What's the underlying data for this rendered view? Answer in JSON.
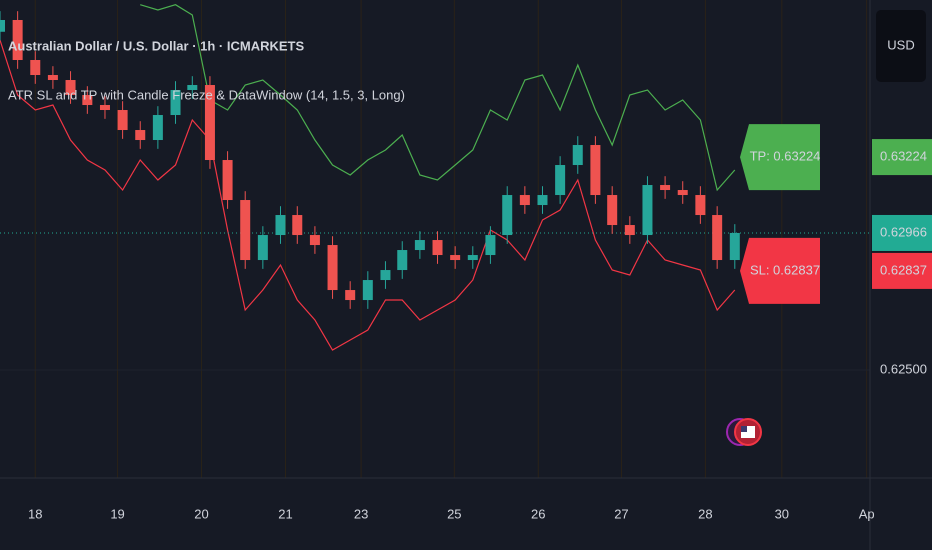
{
  "chart_data": {
    "type": "candlestick",
    "title": "Australian Dollar / U.S. Dollar · 1h · ICMARKETS",
    "subtitle": "ATR SL and TP with Candle Freeze & DataWindow (14, 1.5, 3, Long)",
    "currency": "USD",
    "up_color": "#26a69a",
    "down_color": "#ef5350",
    "x": [
      -0.42,
      -0.21,
      0,
      0.21,
      0.42,
      0.62,
      0.83,
      1.04,
      1.25,
      1.46,
      1.67,
      1.87,
      2.08,
      2.29,
      2.5,
      2.71,
      2.92,
      3.12,
      3.33,
      3.54,
      3.75,
      3.96,
      4.17,
      4.37,
      4.58,
      4.79,
      5,
      5.21,
      5.42,
      5.62,
      5.83,
      6.04,
      6.25,
      6.46,
      6.67,
      6.87,
      7.08,
      7.29,
      7.5,
      7.71,
      7.92,
      8.12,
      8.33
    ],
    "open": [
      0.6365,
      0.6369,
      0.63554,
      0.63503,
      0.63486,
      0.63435,
      0.63401,
      0.63384,
      0.63316,
      0.63282,
      0.63367,
      0.63452,
      0.63469,
      0.63214,
      0.63078,
      0.62874,
      0.62959,
      0.63027,
      0.62959,
      0.62925,
      0.62772,
      0.62738,
      0.62806,
      0.6284,
      0.62908,
      0.62942,
      0.62891,
      0.62874,
      0.62891,
      0.62959,
      0.63095,
      0.63061,
      0.63095,
      0.63197,
      0.63265,
      0.63095,
      0.62993,
      0.62959,
      0.63129,
      0.63112,
      0.63095,
      0.63027,
      0.62874
    ],
    "high": [
      0.6372,
      0.6372,
      0.63584,
      0.63533,
      0.63516,
      0.63465,
      0.63431,
      0.63414,
      0.63346,
      0.63397,
      0.63482,
      0.63499,
      0.63499,
      0.63244,
      0.63108,
      0.62989,
      0.63057,
      0.63057,
      0.62989,
      0.62955,
      0.62802,
      0.62836,
      0.6287,
      0.62938,
      0.62972,
      0.62972,
      0.62921,
      0.62921,
      0.62989,
      0.63125,
      0.63125,
      0.63125,
      0.63227,
      0.63295,
      0.63295,
      0.63125,
      0.63023,
      0.63159,
      0.63159,
      0.63142,
      0.63125,
      0.63057,
      0.62996
    ],
    "low": [
      0.6362,
      0.63524,
      0.63473,
      0.63456,
      0.63405,
      0.63371,
      0.63354,
      0.63286,
      0.63252,
      0.63252,
      0.63337,
      0.63422,
      0.63184,
      0.63048,
      0.62844,
      0.62844,
      0.62929,
      0.62929,
      0.62895,
      0.62742,
      0.62708,
      0.62708,
      0.62776,
      0.6281,
      0.62878,
      0.62861,
      0.62844,
      0.62844,
      0.62861,
      0.62929,
      0.63031,
      0.63031,
      0.63065,
      0.63167,
      0.63065,
      0.62963,
      0.62929,
      0.62929,
      0.63082,
      0.63065,
      0.62997,
      0.62844,
      0.62844
    ],
    "close": [
      0.6369,
      0.63554,
      0.63503,
      0.63486,
      0.63435,
      0.63401,
      0.63384,
      0.63316,
      0.63282,
      0.63367,
      0.63452,
      0.63469,
      0.63214,
      0.63078,
      0.62874,
      0.62959,
      0.63027,
      0.62959,
      0.62925,
      0.62772,
      0.62738,
      0.62806,
      0.6284,
      0.62908,
      0.62942,
      0.62891,
      0.62874,
      0.62891,
      0.62959,
      0.63095,
      0.63061,
      0.63095,
      0.63197,
      0.63265,
      0.63095,
      0.62993,
      0.62959,
      0.63129,
      0.63112,
      0.63095,
      0.63027,
      0.62874,
      0.62966
    ],
    "series": [
      {
        "color": "#4caf50",
        "x": [
          1.25,
          1.46,
          1.67,
          1.87,
          2.08,
          2.29,
          2.5,
          2.71,
          2.92,
          3.12,
          3.33,
          3.54,
          3.75,
          3.96,
          4.17,
          4.37,
          4.58,
          4.79,
          5,
          5.21,
          5.42,
          5.62,
          5.83,
          6.04,
          6.25,
          6.46,
          6.67,
          6.87,
          7.08,
          7.29,
          7.5,
          7.71,
          7.92,
          8.12,
          8.33
        ],
        "values": [
          0.63742,
          0.63724,
          0.63742,
          0.63707,
          0.63418,
          0.63384,
          0.63469,
          0.63486,
          0.63435,
          0.63384,
          0.63282,
          0.63197,
          0.63163,
          0.63214,
          0.63248,
          0.63299,
          0.63163,
          0.63146,
          0.63197,
          0.63248,
          0.63384,
          0.6335,
          0.63486,
          0.63503,
          0.63384,
          0.63537,
          0.63384,
          0.63265,
          0.63435,
          0.63452,
          0.63384,
          0.63418,
          0.6335,
          0.63112,
          0.6318
        ]
      },
      {
        "color": "#f23645",
        "x": [
          -0.42,
          -0.21,
          0,
          0.21,
          0.42,
          0.62,
          0.83,
          1.04,
          1.25,
          1.46,
          1.67,
          1.87,
          2.08,
          2.29,
          2.5,
          2.71,
          2.92,
          3.12,
          3.33,
          3.54,
          3.75,
          3.96,
          4.17,
          4.37,
          4.58,
          4.79,
          5,
          5.21,
          5.42,
          5.62,
          5.83,
          6.04,
          6.25,
          6.46,
          6.67,
          6.87,
          7.08,
          7.29,
          7.5,
          7.71,
          7.92,
          8.12,
          8.33
        ],
        "values": [
          0.63622,
          0.63435,
          0.63384,
          0.63401,
          0.63282,
          0.63214,
          0.6318,
          0.63112,
          0.63214,
          0.63146,
          0.63197,
          0.6335,
          0.63282,
          0.62976,
          0.62704,
          0.62772,
          0.62857,
          0.62738,
          0.6267,
          0.62568,
          0.62602,
          0.62636,
          0.62738,
          0.62738,
          0.6267,
          0.62704,
          0.62738,
          0.62806,
          0.62976,
          0.62942,
          0.62874,
          0.6301,
          0.63044,
          0.63146,
          0.62942,
          0.6284,
          0.62823,
          0.62942,
          0.62874,
          0.62857,
          0.6284,
          0.62704,
          0.62772
        ]
      }
    ],
    "annotations": [
      {
        "label": "TP: 0.63224",
        "value": 0.63224,
        "color": "#4caf50"
      },
      {
        "label": "SL: 0.62837",
        "value": 0.62837,
        "color": "#f23645"
      }
    ],
    "price_labels": [
      {
        "label": "0.63224",
        "value": 0.63224,
        "color": "#4caf50"
      },
      {
        "label": "0.62966",
        "value": 0.62966,
        "color": "#22ab94",
        "line": true
      },
      {
        "label": "0.62837",
        "value": 0.62837,
        "color": "#f23645"
      }
    ],
    "xlim": [
      -0.42,
      9.94
    ],
    "ylim": [
      0.62133,
      0.63758
    ],
    "yticks": [
      {
        "value": 0.625,
        "label": "0.62500"
      }
    ],
    "xticks": [
      {
        "value": 0,
        "label": "18"
      },
      {
        "value": 0.98,
        "label": "19"
      },
      {
        "value": 1.98,
        "label": "20"
      },
      {
        "value": 2.98,
        "label": "21"
      },
      {
        "value": 3.88,
        "label": "23"
      },
      {
        "value": 4.99,
        "label": "25"
      },
      {
        "value": 5.99,
        "label": "26"
      },
      {
        "value": 6.98,
        "label": "27"
      },
      {
        "value": 7.98,
        "label": "28"
      },
      {
        "value": 8.89,
        "label": "30"
      },
      {
        "value": 9.9,
        "label": "Ap"
      }
    ],
    "grid": true
  }
}
